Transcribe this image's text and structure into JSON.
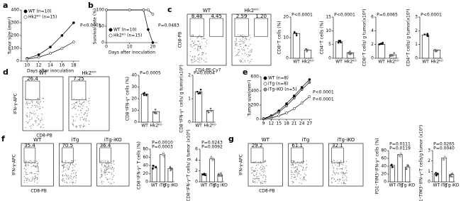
{
  "chart_data": [
    {
      "type": "line",
      "panel": "a",
      "ylabel": "Tumor size (mm²)",
      "xlabel": "Days after inoculation",
      "x": [
        10,
        12,
        14,
        16,
        18
      ],
      "xlim": [
        9,
        19
      ],
      "xticks": [
        10,
        12,
        14,
        16,
        18
      ],
      "ylim": [
        0,
        400
      ],
      "yticks": [
        0,
        100,
        200,
        300,
        400
      ],
      "legend": "upper left",
      "annotations": [
        "P<0.0001"
      ],
      "series": [
        {
          "name": "WT (n=10)",
          "color": "#000000",
          "values": [
            20,
            50,
            110,
            200,
            300
          ]
        },
        {
          "name": "Hk2ᴷᴼ (n=15)",
          "color": "#ffffff",
          "values": [
            15,
            30,
            60,
            100,
            150
          ]
        }
      ]
    },
    {
      "type": "line",
      "panel": "b",
      "ylabel": "Survival rate (%)",
      "xlabel": "Days after inoculation",
      "x": [
        0,
        10,
        16,
        18,
        20
      ],
      "xlim": [
        0,
        22
      ],
      "xticks": [
        0,
        10,
        20
      ],
      "ylim": [
        0,
        100
      ],
      "yticks": [
        0,
        50,
        100
      ],
      "legend": "lower left",
      "annotations": [
        "P=0.0483"
      ],
      "series": [
        {
          "name": "WT (n=10)",
          "color": "#000000",
          "values": [
            100,
            100,
            100,
            40,
            0
          ]
        },
        {
          "name": "Hk2ᴷᴼ (n=15)",
          "color": "#ffffff",
          "values": [
            100,
            100,
            100,
            100,
            87
          ]
        }
      ]
    },
    {
      "type": "flow",
      "panel": "c",
      "ylabel": "CD8-PB",
      "xlabel": "CD4-PE-Cy7",
      "plots": [
        {
          "title": "WT",
          "gates": [
            "8.48",
            "4.45"
          ]
        },
        {
          "title": "Hk2ᴷᴼ",
          "gates": [
            "2.59",
            "1.20"
          ]
        }
      ]
    },
    {
      "type": "bar",
      "ylabel": "CD8⁺T cells (%)",
      "categories": [
        "WT",
        "Hk2ᴷᴼ"
      ],
      "values": [
        12,
        4
      ],
      "colors": [
        "#000000",
        "#999999"
      ],
      "ylim": [
        0,
        20
      ],
      "yticks": [
        0,
        10,
        20
      ],
      "annotations": [
        "P<0.0001"
      ]
    },
    {
      "type": "bar",
      "ylabel": "CD4⁺T cells (%)",
      "categories": [
        "WT",
        "Hk2ᴷᴼ"
      ],
      "values": [
        6,
        2
      ],
      "colors": [
        "#000000",
        "#999999"
      ],
      "ylim": [
        0,
        15
      ],
      "yticks": [
        0,
        5,
        10,
        15
      ],
      "annotations": [
        "P<0.0001"
      ]
    },
    {
      "type": "bar",
      "ylabel": "CD8⁺T cells/ g tumor(x10⁶)",
      "categories": [
        "WT",
        "Hk2ᴷᴼ"
      ],
      "values": [
        2,
        0.5
      ],
      "colors": [
        "#000000",
        "#999999"
      ],
      "ylim": [
        0,
        6
      ],
      "yticks": [
        0,
        2,
        4,
        6
      ],
      "annotations": [
        "P=0.0065"
      ]
    },
    {
      "type": "bar",
      "ylabel": "CD4⁺T cells/ g tumor(x10⁶)",
      "categories": [
        "WT",
        "Hk2ᴷᴼ"
      ],
      "values": [
        1.7,
        0.6
      ],
      "colors": [
        "#000000",
        "#999999"
      ],
      "ylim": [
        0,
        3
      ],
      "yticks": [
        0,
        1,
        2,
        3
      ],
      "annotations": [
        "P<0.0001"
      ]
    },
    {
      "type": "flow",
      "panel": "d",
      "ylabel": "IFN-γ-APC",
      "xlabel": "CD8-PB",
      "plots": [
        {
          "title": "WT",
          "gates": [
            "26.4"
          ]
        },
        {
          "title": "Hk2ᴷᴼ",
          "gates": [
            "7.25"
          ]
        }
      ]
    },
    {
      "type": "bar",
      "ylabel": "CD8⁺IFN-γ⁺ cells (%)",
      "categories": [
        "WT",
        "Hk2ᴷᴼ"
      ],
      "values": [
        24,
        9
      ],
      "colors": [
        "#000000",
        "#999999"
      ],
      "ylim": [
        0,
        40
      ],
      "yticks": [
        0,
        10,
        20,
        30,
        40
      ],
      "annotations": [
        "P=0.0005"
      ]
    },
    {
      "type": "bar",
      "ylabel": "CD8⁺IFN-γ⁺ cells/ g tumor(x10⁶)",
      "categories": [
        "WT",
        "Hk2ᴷᴼ"
      ],
      "values": [
        1.3,
        0.5
      ],
      "colors": [
        "#000000",
        "#999999"
      ],
      "ylim": [
        0,
        2
      ],
      "yticks": [
        0,
        1,
        2
      ],
      "annotations": [
        "P=0.0004"
      ]
    },
    {
      "type": "line",
      "panel": "e",
      "ylabel": "Tumor size(mm²)",
      "x": [
        9,
        12,
        15,
        18,
        21,
        24,
        27
      ],
      "xlim": [
        8,
        28
      ],
      "xticks": [
        9,
        12,
        15,
        18,
        21,
        24,
        27
      ],
      "ylim": [
        0,
        600
      ],
      "yticks": [
        0,
        200,
        400,
        600
      ],
      "legend": "upper left",
      "annotations": [
        "P<0.0001",
        "P<0.0001"
      ],
      "series": [
        {
          "name": "WT (n=8)",
          "color": "#000000",
          "values": [
            10,
            50,
            120,
            220,
            330,
            450,
            560
          ]
        },
        {
          "name": "iTg (n=8)",
          "color": "#ffffff",
          "values": [
            5,
            20,
            50,
            90,
            150,
            230,
            320
          ]
        },
        {
          "name": "iTg-iKO (n=5)",
          "color": "#999999",
          "values": [
            10,
            40,
            100,
            190,
            300,
            420,
            520
          ]
        }
      ]
    },
    {
      "type": "flow",
      "panel": "f",
      "ylabel": "IFN-γ-APC",
      "xlabel": "CD8-PB",
      "plots": [
        {
          "title": "WT",
          "gates": [
            "35.4"
          ]
        },
        {
          "title": "iTg",
          "gates": [
            "70.5"
          ]
        },
        {
          "title": "iTg-iKO",
          "gates": [
            "36.4"
          ]
        }
      ]
    },
    {
      "type": "bar",
      "ylabel": "CD8⁺IFN-γ⁺ T cells (%)",
      "categories": [
        "WT",
        "iTg",
        "iTg iKO"
      ],
      "values": [
        35,
        67,
        32
      ],
      "colors": [
        "#000000",
        "#ffffff",
        "#999999"
      ],
      "ylim": [
        0,
        80
      ],
      "yticks": [
        0,
        20,
        40,
        60,
        80
      ],
      "annotations": [
        "P=0.0010",
        "P=0.0003"
      ]
    },
    {
      "type": "bar",
      "ylabel": "CD8⁺IFN-γ⁺T cells/ g tumor (x10⁶)",
      "categories": [
        "WT",
        "iTg",
        "iTg iKO"
      ],
      "values": [
        1.5,
        4.2,
        1.3
      ],
      "colors": [
        "#000000",
        "#ffffff",
        "#999999"
      ],
      "ylim": [
        0,
        6
      ],
      "yticks": [
        0,
        2,
        4,
        6
      ],
      "annotations": [
        "P=0.0243",
        "P=0.0092"
      ]
    },
    {
      "type": "flow",
      "panel": "g",
      "ylabel": "IFN-γ-APC",
      "xlabel": "CD8-PB",
      "plots": [
        {
          "title": "WT",
          "gates": [
            "29.2"
          ]
        },
        {
          "title": "iTg",
          "gates": [
            "61.1"
          ]
        },
        {
          "title": "iTg-iKO",
          "gates": [
            "32.1"
          ]
        }
      ]
    },
    {
      "type": "bar",
      "ylabel": "PD1⁺TIM3⁺IFN-γ⁺ cells (%)",
      "categories": [
        "WT",
        "iTg",
        "iTg iKO"
      ],
      "values": [
        42,
        70,
        38
      ],
      "colors": [
        "#000000",
        "#ffffff",
        "#999999"
      ],
      "ylim": [
        0,
        80
      ],
      "yticks": [
        0,
        20,
        40,
        60,
        80
      ],
      "annotations": [
        "P=0.0111",
        "P=0.0119"
      ]
    },
    {
      "type": "bar",
      "ylabel": "PD1⁺TIM3⁺IFN-γ⁺T cells/g tumor (x10⁶)",
      "categories": [
        "WT",
        "iTg",
        "iTg iKO"
      ],
      "values": [
        0.8,
        2.3,
        0.7
      ],
      "colors": [
        "#000000",
        "#ffffff",
        "#999999"
      ],
      "ylim": [
        0,
        3
      ],
      "yticks": [
        0,
        1,
        2,
        3
      ],
      "annotations": [
        "P=0.0265",
        "P=0.0040"
      ]
    }
  ]
}
